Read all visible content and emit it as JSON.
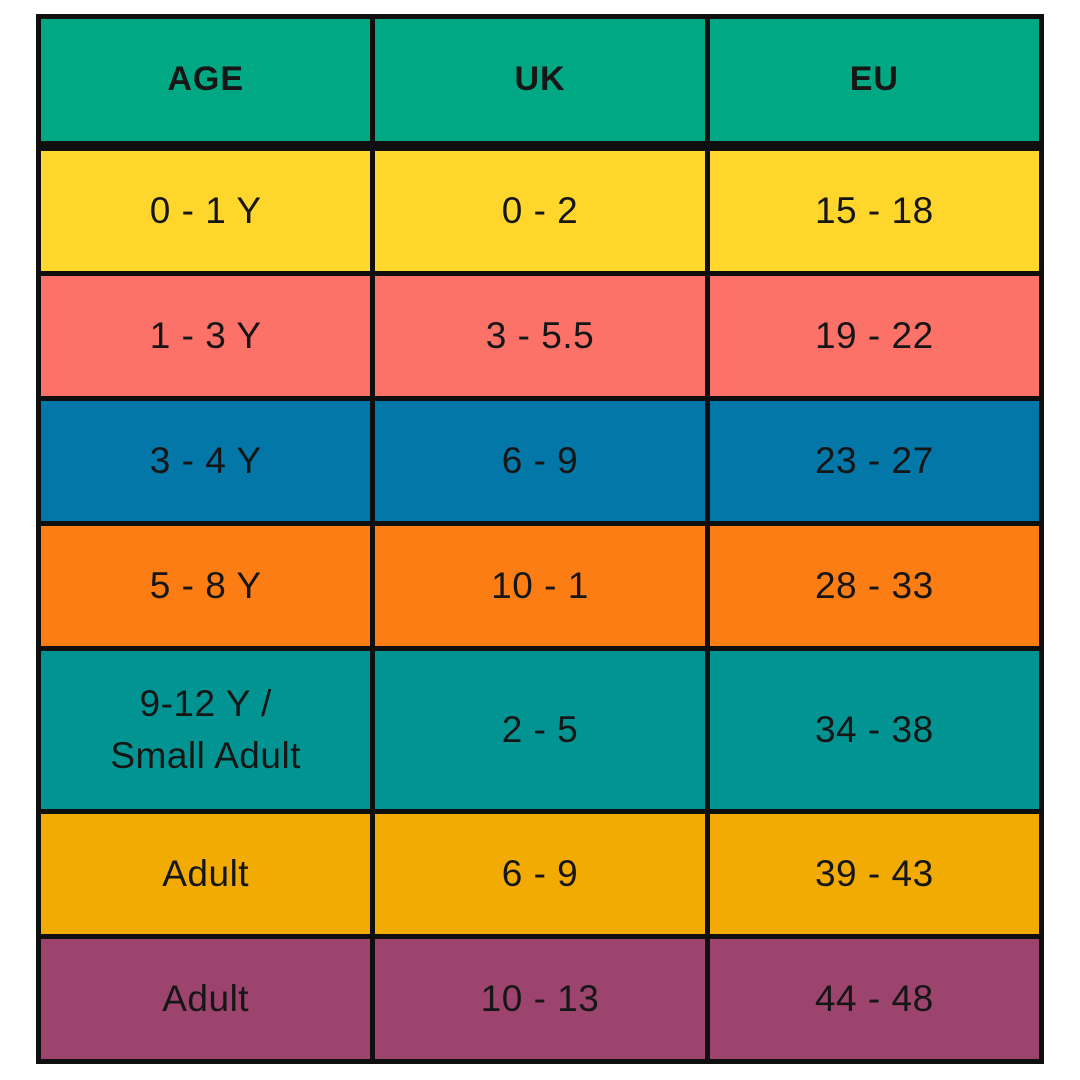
{
  "table": {
    "border_color": "#0f0f0f",
    "text_color": "#161616",
    "header": {
      "color": "#00a884",
      "columns": [
        {
          "label": "AGE"
        },
        {
          "label": "UK"
        },
        {
          "label": "EU"
        }
      ]
    },
    "rows": [
      {
        "age": "0 - 1 Y",
        "uk": "0 - 2",
        "eu": "15 - 18",
        "color": "#ffd72c"
      },
      {
        "age": "1 - 3 Y",
        "uk": "3 - 5.5",
        "eu": "19 - 22",
        "color": "#fc7168"
      },
      {
        "age": "3 - 4 Y",
        "uk": "6 - 9",
        "eu": "23 - 27",
        "color": "#0277a8"
      },
      {
        "age": "5 - 8 Y",
        "uk": "10 - 1",
        "eu": "28 - 33",
        "color": "#fb7d13"
      },
      {
        "age": "9-12 Y /\nSmall Adult",
        "uk": "2 - 5",
        "eu": "34 - 38",
        "color": "#029492"
      },
      {
        "age": "Adult",
        "uk": "6 - 9",
        "eu": "39 - 43",
        "color": "#f1ab02"
      },
      {
        "age": "Adult",
        "uk": "10 - 13",
        "eu": "44 - 48",
        "color": "#9c446e"
      }
    ]
  },
  "chart_data": {
    "type": "table",
    "columns": [
      "AGE",
      "UK",
      "EU"
    ],
    "rows": [
      [
        "0 - 1 Y",
        "0 - 2",
        "15 - 18"
      ],
      [
        "1 - 3 Y",
        "3 - 5.5",
        "19 - 22"
      ],
      [
        "3 - 4 Y",
        "6 - 9",
        "23 - 27"
      ],
      [
        "5 - 8 Y",
        "10 - 1",
        "28 - 33"
      ],
      [
        "9-12 Y / Small Adult",
        "2 - 5",
        "34 - 38"
      ],
      [
        "Adult",
        "6 - 9",
        "39 - 43"
      ],
      [
        "Adult",
        "10 - 13",
        "44 - 48"
      ]
    ],
    "header_color": "#00a884",
    "row_colors": [
      "#ffd72c",
      "#fc7168",
      "#0277a8",
      "#fb7d13",
      "#029492",
      "#f1ab02",
      "#9c446e"
    ],
    "legend_position": "none",
    "grid": true
  }
}
